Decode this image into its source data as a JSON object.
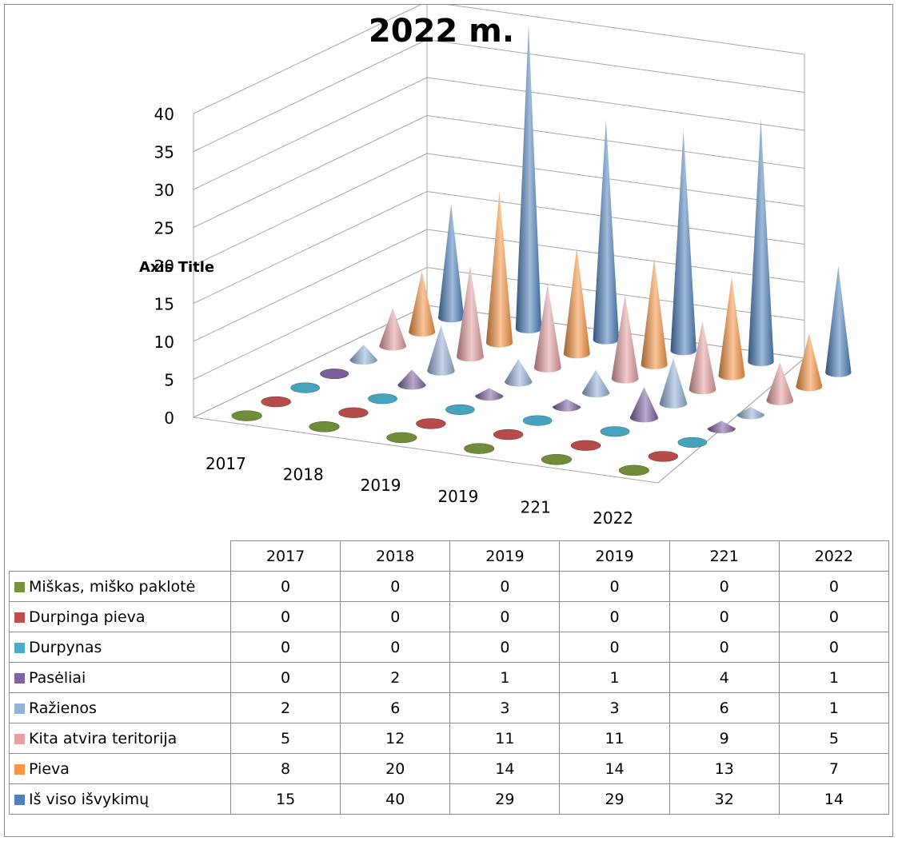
{
  "chart_data": {
    "type": "bar",
    "title": "2022 m.",
    "ylabel": "Axis Title",
    "xlabel": "",
    "categories": [
      "2017",
      "2018",
      "2019",
      "2019",
      "221",
      "2022"
    ],
    "ylim": [
      0,
      40
    ],
    "yticks": [
      0,
      5,
      10,
      15,
      20,
      25,
      30,
      35,
      40
    ],
    "grid": true,
    "legend": "table",
    "series": [
      {
        "name": "Miškas, miško paklotė",
        "color": "#77933c",
        "values": [
          0,
          0,
          0,
          0,
          0,
          0
        ]
      },
      {
        "name": "Durpinga pieva",
        "color": "#c0504d",
        "values": [
          0,
          0,
          0,
          0,
          0,
          0
        ]
      },
      {
        "name": "Durpynas",
        "color": "#4bacc6",
        "values": [
          0,
          0,
          0,
          0,
          0,
          0
        ]
      },
      {
        "name": "Pasėliai",
        "color": "#8064a2",
        "values": [
          0,
          2,
          1,
          1,
          4,
          1
        ]
      },
      {
        "name": "Ražienos",
        "color": "#95b3d7",
        "values": [
          2,
          6,
          3,
          3,
          6,
          1
        ]
      },
      {
        "name": "Kita atvira teritorija",
        "color": "#e6a0a2",
        "values": [
          5,
          12,
          11,
          11,
          9,
          5
        ]
      },
      {
        "name": "Pieva",
        "color": "#f79646",
        "values": [
          8,
          20,
          14,
          14,
          13,
          7
        ]
      },
      {
        "name": "Iš viso išvykimų",
        "color": "#4f81bd",
        "values": [
          15,
          40,
          29,
          29,
          32,
          14
        ]
      }
    ]
  }
}
